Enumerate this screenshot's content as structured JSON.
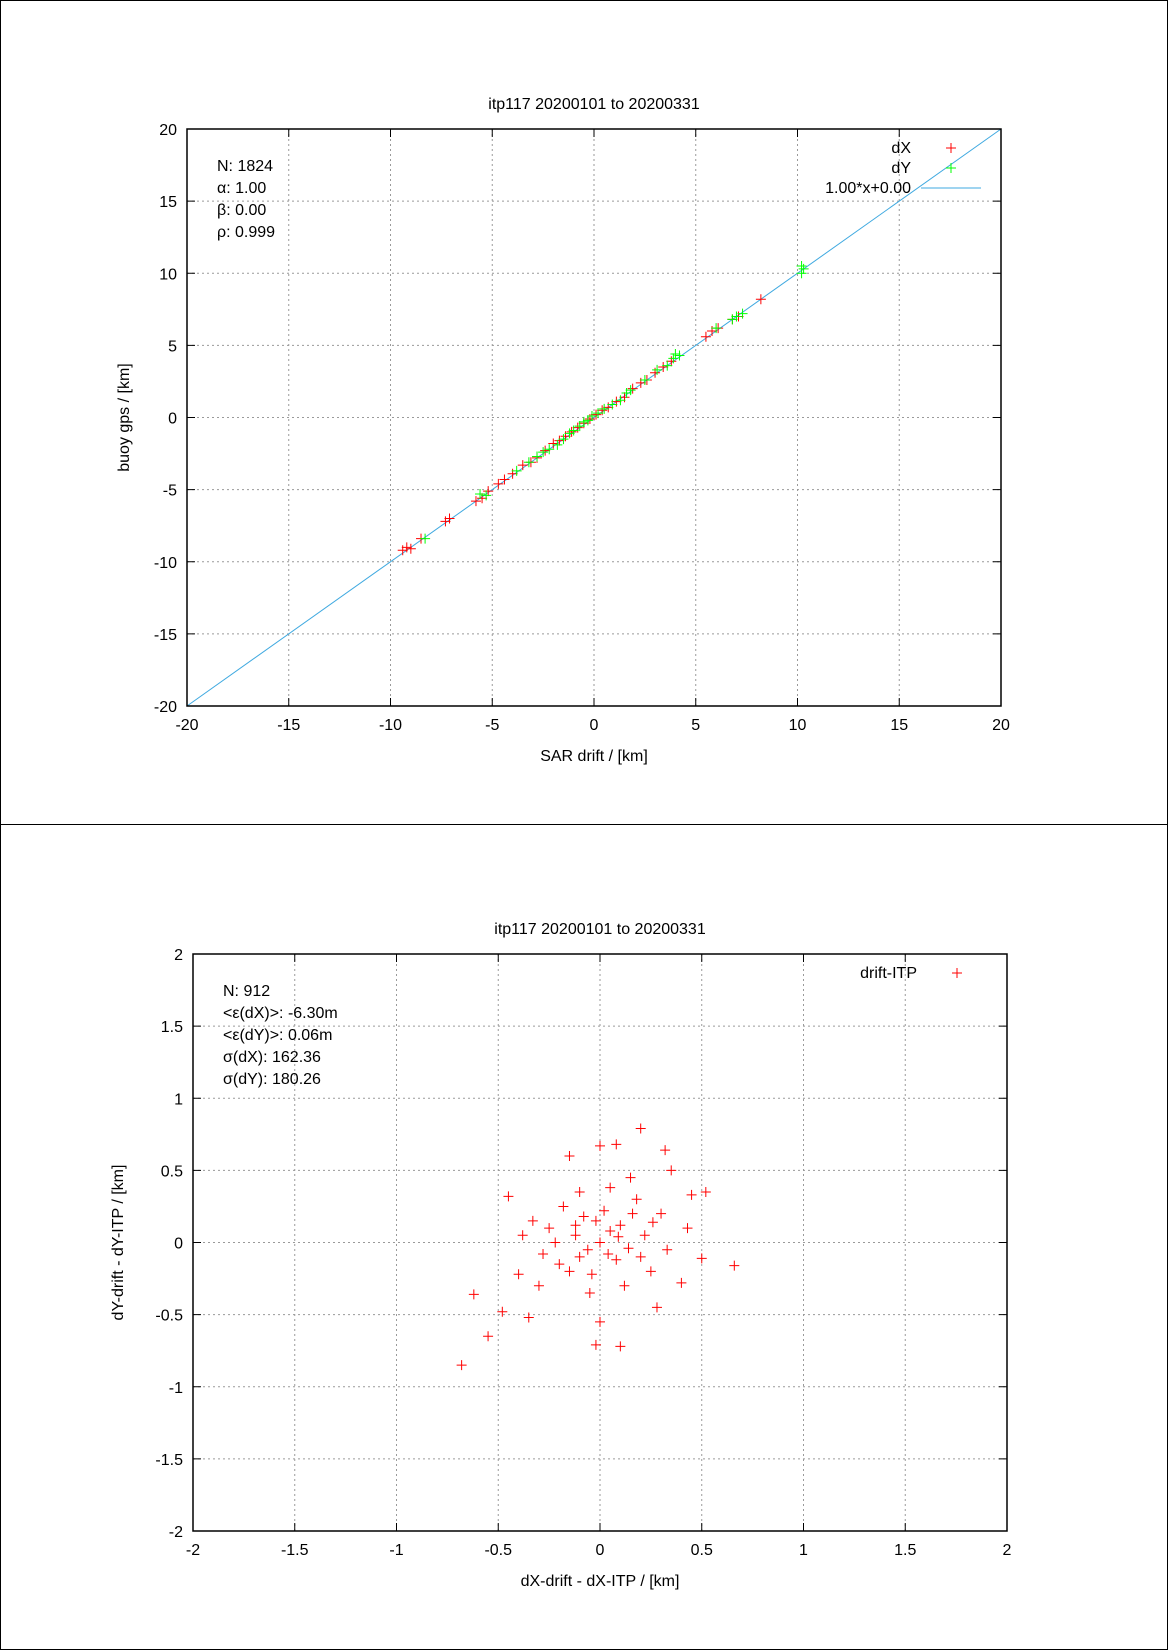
{
  "colors": {
    "dX": "#ff0000",
    "dY": "#00ff00",
    "fit": "#3fa9e0",
    "grid": "#9a9a9a"
  },
  "chart_data": [
    {
      "type": "scatter",
      "title": "itp117 20200101 to 20200331",
      "xlabel": "SAR drift / [km]",
      "ylabel": "buoy gps / [km]",
      "xlim": [
        -20,
        20
      ],
      "ylim": [
        -20,
        20
      ],
      "xticks": [
        "-20",
        "-15",
        "-10",
        "-5",
        "0",
        "5",
        "10",
        "15",
        "20"
      ],
      "yticks": [
        "-20",
        "-15",
        "-10",
        "-5",
        "0",
        "5",
        "10",
        "15",
        "20"
      ],
      "grid": true,
      "legend_position": "top-right",
      "stats": [
        "N: 1824",
        "α: 1.00",
        "β: 0.00",
        "ρ: 0.999"
      ],
      "series": [
        {
          "name": "dX",
          "color": "#ff0000",
          "points": [
            [
              -9.4,
              -9.2
            ],
            [
              -9.2,
              -9.0
            ],
            [
              -9.0,
              -9.1
            ],
            [
              -8.5,
              -8.4
            ],
            [
              -7.3,
              -7.2
            ],
            [
              -7.1,
              -7.0
            ],
            [
              -5.8,
              -5.8
            ],
            [
              -5.5,
              -5.6
            ],
            [
              -5.2,
              -5.1
            ],
            [
              -4.7,
              -4.6
            ],
            [
              -4.4,
              -4.3
            ],
            [
              -4.0,
              -3.9
            ],
            [
              -3.5,
              -3.3
            ],
            [
              -3.1,
              -3.1
            ],
            [
              -2.8,
              -2.8
            ],
            [
              -2.4,
              -2.3
            ],
            [
              -2.0,
              -1.8
            ],
            [
              -1.7,
              -1.6
            ],
            [
              -1.4,
              -1.3
            ],
            [
              -1.1,
              -1.0
            ],
            [
              -0.8,
              -0.7
            ],
            [
              -0.5,
              -0.4
            ],
            [
              -0.2,
              -0.1
            ],
            [
              0.1,
              0.2
            ],
            [
              0.4,
              0.5
            ],
            [
              0.7,
              0.7
            ],
            [
              1.1,
              1.1
            ],
            [
              1.5,
              1.4
            ],
            [
              1.9,
              2.0
            ],
            [
              2.3,
              2.4
            ],
            [
              2.6,
              2.6
            ],
            [
              3.0,
              3.1
            ],
            [
              3.4,
              3.5
            ],
            [
              3.8,
              3.9
            ],
            [
              5.5,
              5.6
            ],
            [
              5.8,
              6.0
            ],
            [
              6.1,
              6.2
            ],
            [
              6.8,
              6.8
            ],
            [
              7.1,
              7.0
            ],
            [
              8.2,
              8.2
            ]
          ]
        },
        {
          "name": "dY",
          "color": "#00ff00",
          "points": [
            [
              -8.3,
              -8.4
            ],
            [
              -5.6,
              -5.3
            ],
            [
              -5.3,
              -5.4
            ],
            [
              -3.8,
              -3.7
            ],
            [
              -3.2,
              -3.1
            ],
            [
              -2.8,
              -2.7
            ],
            [
              -2.5,
              -2.4
            ],
            [
              -2.2,
              -2.2
            ],
            [
              -1.8,
              -1.9
            ],
            [
              -1.5,
              -1.5
            ],
            [
              -1.2,
              -1.1
            ],
            [
              -1.0,
              -0.9
            ],
            [
              -0.7,
              -0.6
            ],
            [
              -0.5,
              -0.3
            ],
            [
              -0.3,
              -0.2
            ],
            [
              -0.1,
              0.1
            ],
            [
              0.2,
              0.3
            ],
            [
              0.5,
              0.6
            ],
            [
              0.9,
              0.9
            ],
            [
              1.3,
              1.2
            ],
            [
              1.6,
              1.7
            ],
            [
              1.8,
              1.9
            ],
            [
              2.5,
              2.6
            ],
            [
              3.1,
              3.3
            ],
            [
              3.6,
              3.6
            ],
            [
              3.9,
              4.1
            ],
            [
              4.0,
              4.4
            ],
            [
              4.2,
              4.3
            ],
            [
              6.0,
              6.2
            ],
            [
              6.8,
              6.8
            ],
            [
              7.0,
              7.0
            ],
            [
              7.3,
              7.2
            ],
            [
              10.2,
              10.0
            ],
            [
              10.3,
              10.3
            ],
            [
              10.2,
              10.5
            ]
          ]
        }
      ],
      "fit": {
        "label": "1.00*x+0.00",
        "slope": 1.0,
        "intercept": 0.0
      }
    },
    {
      "type": "scatter",
      "title": "itp117 20200101 to 20200331",
      "xlabel": "dX-drift - dX-ITP / [km]",
      "ylabel": "dY-drift - dY-ITP / [km]",
      "xlim": [
        -2,
        2
      ],
      "ylim": [
        -2,
        2
      ],
      "xticks": [
        "-2",
        "-1.5",
        "-1",
        "-0.5",
        "0",
        "0.5",
        "1",
        "1.5",
        "2"
      ],
      "yticks": [
        "-2",
        "-1.5",
        "-1",
        "-0.5",
        "0",
        "0.5",
        "1",
        "1.5",
        "2"
      ],
      "grid": true,
      "legend_position": "top-right",
      "stats": [
        "N: 912",
        "<ε(dX)>:  -6.30m",
        "<ε(dY)>: 0.06m",
        "σ(dX):  162.36",
        "σ(dY):  180.26"
      ],
      "series": [
        {
          "name": "drift-ITP",
          "color": "#ff0000",
          "points": [
            [
              -0.68,
              -0.85
            ],
            [
              -0.55,
              -0.65
            ],
            [
              -0.62,
              -0.36
            ],
            [
              -0.48,
              -0.48
            ],
            [
              0.2,
              0.79
            ],
            [
              0.0,
              0.67
            ],
            [
              0.08,
              0.68
            ],
            [
              -0.15,
              0.6
            ],
            [
              0.32,
              0.64
            ],
            [
              0.35,
              0.5
            ],
            [
              0.66,
              -0.16
            ],
            [
              0.5,
              -0.11
            ],
            [
              0.52,
              0.35
            ],
            [
              0.45,
              0.33
            ],
            [
              0.43,
              0.1
            ],
            [
              -0.02,
              -0.71
            ],
            [
              0.1,
              -0.72
            ],
            [
              0.0,
              -0.55
            ],
            [
              -0.35,
              -0.52
            ],
            [
              0.28,
              -0.45
            ],
            [
              0.4,
              -0.28
            ],
            [
              -0.45,
              0.32
            ],
            [
              -0.4,
              -0.22
            ],
            [
              -0.3,
              -0.3
            ],
            [
              -0.25,
              0.1
            ],
            [
              -0.2,
              -0.15
            ],
            [
              0.15,
              0.45
            ],
            [
              0.3,
              0.2
            ],
            [
              0.25,
              -0.2
            ],
            [
              0.05,
              0.38
            ],
            [
              -0.1,
              0.35
            ],
            [
              0.22,
              0.05
            ],
            [
              -0.33,
              0.15
            ],
            [
              0.12,
              -0.3
            ],
            [
              -0.18,
              0.25
            ],
            [
              0.33,
              -0.05
            ],
            [
              -0.05,
              -0.35
            ],
            [
              0.18,
              0.3
            ],
            [
              -0.38,
              0.05
            ],
            [
              0.08,
              -0.12
            ],
            [
              -0.12,
              0.05
            ],
            [
              0.0,
              0.0
            ],
            [
              0.05,
              0.08
            ],
            [
              -0.06,
              -0.05
            ],
            [
              0.1,
              0.12
            ],
            [
              -0.02,
              0.15
            ],
            [
              0.04,
              -0.08
            ],
            [
              -0.1,
              -0.1
            ],
            [
              0.14,
              -0.04
            ],
            [
              -0.08,
              0.18
            ],
            [
              0.2,
              -0.1
            ],
            [
              -0.15,
              -0.2
            ],
            [
              0.02,
              0.22
            ],
            [
              -0.22,
              0.0
            ],
            [
              0.26,
              0.14
            ],
            [
              -0.04,
              -0.22
            ],
            [
              0.09,
              0.04
            ],
            [
              -0.28,
              -0.08
            ],
            [
              0.16,
              0.2
            ],
            [
              -0.12,
              0.12
            ]
          ]
        }
      ]
    }
  ]
}
